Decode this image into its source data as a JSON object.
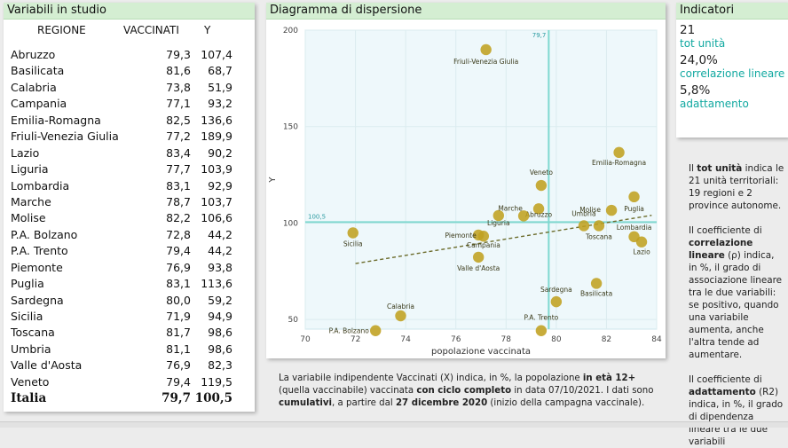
{
  "table": {
    "title": "Variabili in studio",
    "col_region": "REGIONE",
    "col_x": "VACCINATI",
    "col_y": "Y",
    "rows": [
      {
        "name": "Abruzzo",
        "x": "79,3",
        "y": "107,4"
      },
      {
        "name": "Basilicata",
        "x": "81,6",
        "y": "68,7"
      },
      {
        "name": "Calabria",
        "x": "73,8",
        "y": "51,9"
      },
      {
        "name": "Campania",
        "x": "77,1",
        "y": "93,2"
      },
      {
        "name": "Emilia-Romagna",
        "x": "82,5",
        "y": "136,6"
      },
      {
        "name": "Friuli-Venezia Giulia",
        "x": "77,2",
        "y": "189,9"
      },
      {
        "name": "Lazio",
        "x": "83,4",
        "y": "90,2"
      },
      {
        "name": "Liguria",
        "x": "77,7",
        "y": "103,9"
      },
      {
        "name": "Lombardia",
        "x": "83,1",
        "y": "92,9"
      },
      {
        "name": "Marche",
        "x": "78,7",
        "y": "103,7"
      },
      {
        "name": "Molise",
        "x": "82,2",
        "y": "106,6"
      },
      {
        "name": "P.A. Bolzano",
        "x": "72,8",
        "y": "44,2"
      },
      {
        "name": "P.A. Trento",
        "x": "79,4",
        "y": "44,2"
      },
      {
        "name": "Piemonte",
        "x": "76,9",
        "y": "93,8"
      },
      {
        "name": "Puglia",
        "x": "83,1",
        "y": "113,6"
      },
      {
        "name": "Sardegna",
        "x": "80,0",
        "y": "59,2"
      },
      {
        "name": "Sicilia",
        "x": "71,9",
        "y": "94,9"
      },
      {
        "name": "Toscana",
        "x": "81,7",
        "y": "98,6"
      },
      {
        "name": "Umbria",
        "x": "81,1",
        "y": "98,6"
      },
      {
        "name": "Valle d'Aosta",
        "x": "76,9",
        "y": "82,3"
      },
      {
        "name": "Veneto",
        "x": "79,4",
        "y": "119,5"
      }
    ],
    "total": {
      "name": "Italia",
      "x": "79,7",
      "y": "100,5"
    }
  },
  "chart_title": "Diagramma di dispersione",
  "chart_data": {
    "type": "scatter",
    "xlabel": "popolazione vaccinata",
    "ylabel": "Y",
    "xlim": [
      70,
      84
    ],
    "ylim": [
      45,
      200
    ],
    "xticks": [
      "70",
      "72",
      "74",
      "76",
      "78",
      "80",
      "82",
      "84"
    ],
    "yticks": [
      "50",
      "100",
      "150",
      "200"
    ],
    "mean_x": 79.7,
    "mean_y": 100.5,
    "mean_x_label": "79,7",
    "mean_y_label": "100,5",
    "trend": {
      "x1": 72.0,
      "y1": 79,
      "x2": 83.8,
      "y2": 104
    },
    "point_color": "#c0a020",
    "mean_line_color": "#7fd8d0",
    "trend_color": "#6b6b2a",
    "points": [
      {
        "label": "Abruzzo",
        "x": 79.3,
        "y": 107.4
      },
      {
        "label": "Basilicata",
        "x": 81.6,
        "y": 68.7
      },
      {
        "label": "Calabria",
        "x": 73.8,
        "y": 51.9
      },
      {
        "label": "Campania",
        "x": 77.1,
        "y": 93.2
      },
      {
        "label": "Emilia-Romagna",
        "x": 82.5,
        "y": 136.6
      },
      {
        "label": "Friuli-Venezia Giulia",
        "x": 77.2,
        "y": 189.9
      },
      {
        "label": "Lazio",
        "x": 83.4,
        "y": 90.2
      },
      {
        "label": "Liguria",
        "x": 77.7,
        "y": 103.9
      },
      {
        "label": "Lombardia",
        "x": 83.1,
        "y": 92.9
      },
      {
        "label": "Marche",
        "x": 78.7,
        "y": 103.7
      },
      {
        "label": "Molise",
        "x": 82.2,
        "y": 106.6
      },
      {
        "label": "P.A. Bolzano",
        "x": 72.8,
        "y": 44.2
      },
      {
        "label": "P.A. Trento",
        "x": 79.4,
        "y": 44.2
      },
      {
        "label": "Piemonte",
        "x": 76.9,
        "y": 93.8
      },
      {
        "label": "Puglia",
        "x": 83.1,
        "y": 113.6
      },
      {
        "label": "Sardegna",
        "x": 80.0,
        "y": 59.2
      },
      {
        "label": "Sicilia",
        "x": 71.9,
        "y": 94.9
      },
      {
        "label": "Toscana",
        "x": 81.7,
        "y": 98.6
      },
      {
        "label": "Umbria",
        "x": 81.1,
        "y": 98.6
      },
      {
        "label": "Valle d'Aosta",
        "x": 76.9,
        "y": 82.3
      },
      {
        "label": "Veneto",
        "x": 79.4,
        "y": 119.5
      }
    ]
  },
  "note": {
    "t1": "La variabile indipendente Vaccinati (X) indica, in %, la popolazione ",
    "b1": "in età 12+",
    "t2": " (quella vaccinabile) vaccinata ",
    "b2": "con ciclo completo",
    "t3": " in data  07/10/2021. I dati sono ",
    "b3": "cumulativi",
    "t4": ", a partire dal ",
    "b4": "27 dicembre 2020",
    "t5": " (inizio della campagna vaccinale)."
  },
  "indicators": {
    "title": "Indicatori",
    "units_value": "21",
    "units_label": "tot unità",
    "corr_value": "24,0%",
    "corr_label": "correlazione lineare",
    "fit_value": "5,8%",
    "fit_label": "adattamento"
  },
  "side": {
    "p1a": "Il ",
    "p1b": "tot unità",
    "p1c": " indica le 21 unità territoriali: 19 regioni e 2 province autonome.",
    "p2a": "Il coefficiente di ",
    "p2b": "correlazione lineare",
    "p2c": " (ρ) indica, in %, il grado di associazione lineare tra le due variabili: se positivo, quando una variabile aumenta, anche l'altra tende ad aumentare.",
    "p3a": "Il coefficiente di ",
    "p3b": "adattamento",
    "p3c": " (R2) indica, in %, il grado di dipendenza lineare tra le due variabili"
  }
}
